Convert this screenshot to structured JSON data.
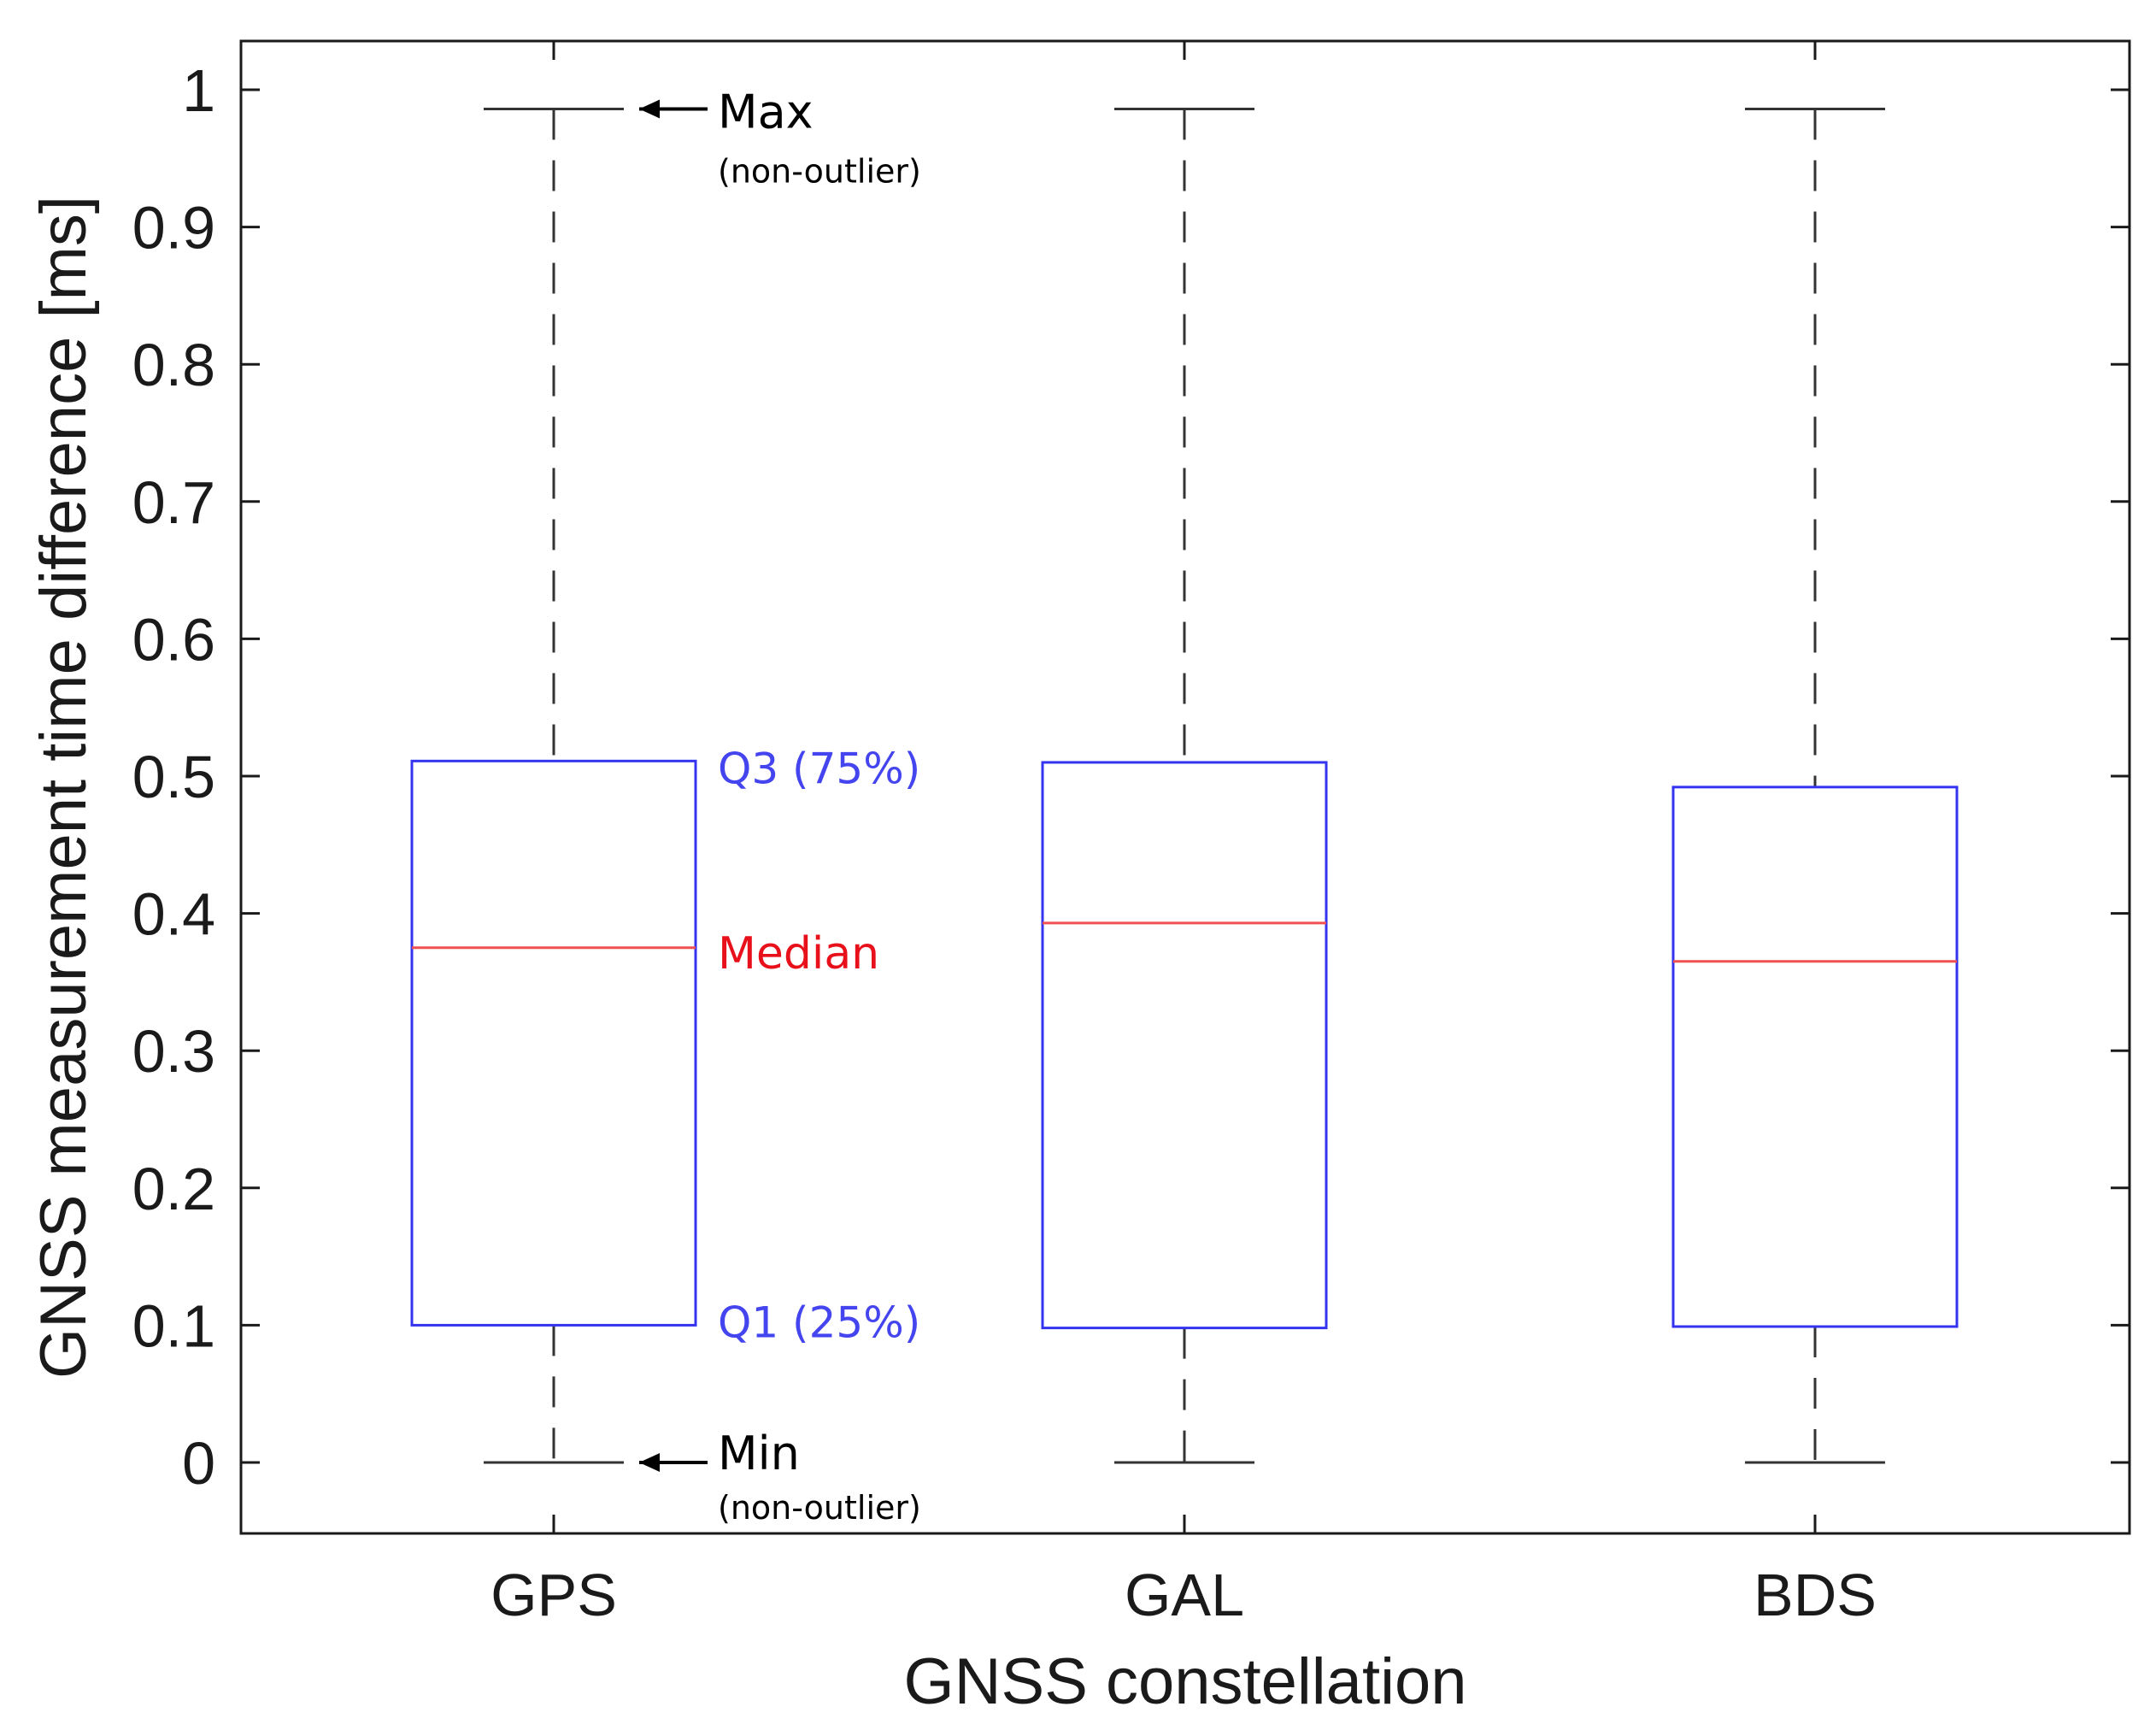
{
  "chart_data": {
    "type": "box",
    "xlabel": "GNSS constellation",
    "ylabel": "GNSS measurement time difference [ms]",
    "categories": [
      "GPS",
      "GAL",
      "BDS"
    ],
    "ylim": [
      -0.05,
      1.035
    ],
    "yticks": [
      0,
      0.1,
      0.2,
      0.3,
      0.4,
      0.5,
      0.6,
      0.7,
      0.8,
      0.9,
      1
    ],
    "ytick_labels": [
      "0",
      "0.1",
      "0.2",
      "0.3",
      "0.4",
      "0.5",
      "0.6",
      "0.7",
      "0.8",
      "0.9",
      "1"
    ],
    "boxes": [
      {
        "category": "GPS",
        "min": 0.0,
        "q1": 0.1,
        "median": 0.375,
        "q3": 0.511,
        "max": 0.986
      },
      {
        "category": "GAL",
        "min": 0.0,
        "q1": 0.098,
        "median": 0.393,
        "q3": 0.51,
        "max": 0.986
      },
      {
        "category": "BDS",
        "min": 0.0,
        "q1": 0.099,
        "median": 0.365,
        "q3": 0.492,
        "max": 0.986
      }
    ],
    "grid": false,
    "colors": {
      "box": "#3434f0",
      "median": "#f05050",
      "whisker": "#333333",
      "axis": "#1a1a1a"
    }
  },
  "annotations": {
    "max": {
      "label": "Max",
      "sub": "(non-outlier)",
      "color": "#000000"
    },
    "q3": {
      "label": "Q3 (75%)",
      "color": "#4545f0"
    },
    "median": {
      "label": "Median",
      "color": "#e8101a"
    },
    "q1": {
      "label": "Q1 (25%)",
      "color": "#4545f0"
    },
    "min": {
      "label": "Min",
      "sub": "(non-outlier)",
      "color": "#000000"
    }
  }
}
